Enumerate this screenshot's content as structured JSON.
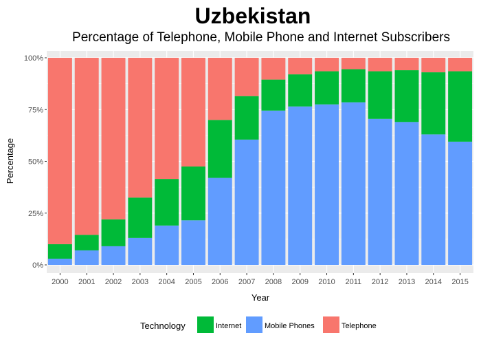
{
  "chart_data": {
    "type": "bar",
    "stacked": true,
    "title": "Uzbekistan",
    "subtitle": "Percentage of Telephone, Mobile Phone and Internet Subscribers",
    "xlabel": "Year",
    "ylabel": "Percentage",
    "ylim": [
      0,
      100
    ],
    "y_ticks": [
      0,
      25,
      50,
      75,
      100
    ],
    "y_tick_labels": [
      "0%",
      "25%",
      "50%",
      "75%",
      "100%"
    ],
    "categories": [
      "2000",
      "2001",
      "2002",
      "2003",
      "2004",
      "2005",
      "2006",
      "2007",
      "2008",
      "2009",
      "2010",
      "2011",
      "2012",
      "2013",
      "2014",
      "2015"
    ],
    "series": [
      {
        "name": "Mobile Phones",
        "color": "#619CFF",
        "values": [
          3,
          7,
          9,
          13,
          19,
          21.5,
          42,
          60.5,
          74.5,
          76.5,
          77.5,
          78.5,
          70.5,
          69,
          63,
          59.5
        ]
      },
      {
        "name": "Internet",
        "color": "#00BA38",
        "values": [
          7,
          7.5,
          13,
          19.5,
          22.5,
          26,
          28,
          21,
          15,
          15.5,
          16,
          16,
          23,
          25,
          30,
          34
        ]
      },
      {
        "name": "Telephone",
        "color": "#F8766D",
        "values": [
          90,
          85.5,
          78,
          67.5,
          58.5,
          52.5,
          30,
          18.5,
          10.5,
          8,
          6.5,
          5.5,
          6.5,
          6,
          7,
          6.5
        ]
      }
    ],
    "legend": {
      "title": "Technology",
      "position": "bottom",
      "items": [
        {
          "label": "Internet",
          "color": "#00BA38"
        },
        {
          "label": "Mobile Phones",
          "color": "#619CFF"
        },
        {
          "label": "Telephone",
          "color": "#F8766D"
        }
      ]
    },
    "panel_background": "#EBEBEB",
    "grid": true
  }
}
